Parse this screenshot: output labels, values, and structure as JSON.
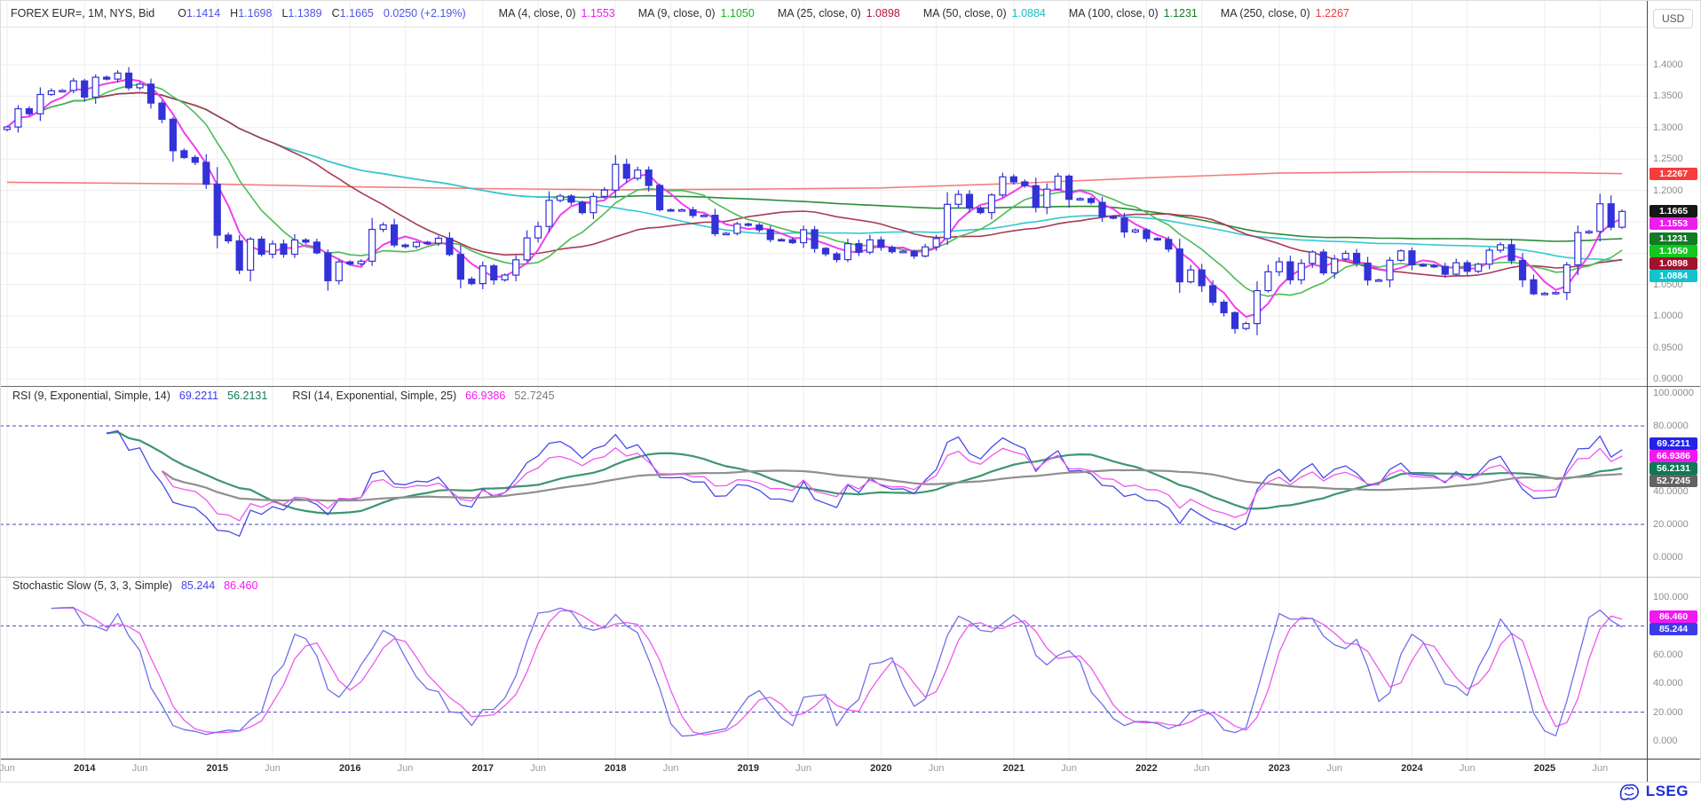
{
  "legend": {
    "instrument": "FOREX EUR=, 1M, NYS, Bid",
    "ohlc_tokens": [
      {
        "label": "O",
        "value": "1.1414"
      },
      {
        "label": "H",
        "value": "1.1698"
      },
      {
        "label": "L",
        "value": "1.1389"
      },
      {
        "label": "C",
        "value": "1.1665"
      }
    ],
    "change": "0.0250 (+2.19%)",
    "value_color": "#4e56e8",
    "ma_items": [
      {
        "label": "MA (4, close, 0)",
        "value": "1.1553",
        "color": "#ee1cee"
      },
      {
        "label": "MA (9, close, 0)",
        "value": "1.1050",
        "color": "#12b51f"
      },
      {
        "label": "MA (25, close, 0)",
        "value": "1.0898",
        "color": "#b5173a"
      },
      {
        "label": "MA (50, close, 0)",
        "value": "1.0884",
        "color": "#17c0ce"
      },
      {
        "label": "MA (100, close, 0)",
        "value": "1.1231",
        "color": "#157a26"
      },
      {
        "label": "MA (250, close, 0)",
        "value": "1.2267",
        "color": "#ee3b3b"
      }
    ]
  },
  "axis": {
    "currency": "USD"
  },
  "footer": {
    "brand": "LSEG"
  },
  "chart_data": {
    "type": "candlestick",
    "symbol": "FOREX EUR=",
    "interval": "1M",
    "start_month": "2013-06",
    "candle_color": "#3232d8",
    "closes": [
      1.301,
      1.33,
      1.322,
      1.3527,
      1.3585,
      1.3591,
      1.3743,
      1.3486,
      1.3802,
      1.3772,
      1.3867,
      1.3634,
      1.3692,
      1.339,
      1.3132,
      1.2632,
      1.2524,
      1.2447,
      1.2098,
      1.1288,
      1.1197,
      1.0731,
      1.1224,
      1.0985,
      1.1147,
      1.0984,
      1.1211,
      1.1177,
      1.1006,
      1.0563,
      1.0862,
      1.0831,
      1.0873,
      1.138,
      1.1451,
      1.1131,
      1.1106,
      1.1175,
      1.1159,
      1.1238,
      1.0981,
      1.0587,
      1.0517,
      1.0798,
      1.0576,
      1.0652,
      1.0895,
      1.1244,
      1.1426,
      1.1842,
      1.191,
      1.1814,
      1.1646,
      1.1904,
      1.2005,
      1.2415,
      1.2193,
      1.2324,
      1.2079,
      1.1693,
      1.1684,
      1.1691,
      1.1601,
      1.1604,
      1.1312,
      1.1317,
      1.1467,
      1.1448,
      1.1372,
      1.1218,
      1.1215,
      1.1168,
      1.1373,
      1.1077,
      1.0989,
      1.0899,
      1.1152,
      1.1017,
      1.1213,
      1.1093,
      1.1025,
      1.1031,
      1.0955,
      1.1101,
      1.1234,
      1.1778,
      1.1936,
      1.1721,
      1.1647,
      1.1927,
      1.2216,
      1.2136,
      1.2075,
      1.173,
      1.202,
      1.2227,
      1.1858,
      1.187,
      1.1809,
      1.158,
      1.156,
      1.1339,
      1.137,
      1.1235,
      1.1219,
      1.1067,
      1.0545,
      1.0734,
      1.0484,
      1.022,
      1.0054,
      0.9802,
      0.9881,
      1.0405,
      1.0705,
      1.0863,
      1.0577,
      1.0839,
      1.1019,
      1.0687,
      1.0909,
      1.0998,
      1.0843,
      1.0573,
      1.0575,
      1.0888,
      1.1038,
      1.0818,
      1.0805,
      1.079,
      1.0666,
      1.0848,
      1.0713,
      1.0826,
      1.1048,
      1.1135,
      1.0884,
      1.0577,
      1.0354,
      1.0362,
      1.0375,
      1.0815,
      1.1328,
      1.1347,
      1.1787,
      1.1415,
      1.1665
    ],
    "last_candle": {
      "open": 1.1414,
      "high": 1.1698,
      "low": 1.1389,
      "close": 1.1665
    },
    "price_axis": {
      "min": 0.9,
      "max": 1.4,
      "tick": 0.05,
      "labels": [
        "1.4000",
        "1.3500",
        "1.3000",
        "1.2500",
        "1.2000",
        "1.1500",
        "1.1000",
        "1.0500",
        "1.0000",
        "0.9500",
        "0.9000"
      ]
    },
    "price_badges": [
      {
        "text": "1.2267",
        "value": 1.2267,
        "bg": "#f83b3b"
      },
      {
        "text": "1.1665",
        "value": 1.1665,
        "bg": "#161616"
      },
      {
        "text": "1.1553",
        "value": 1.1553,
        "bg": "#ee1cee"
      },
      {
        "text": "1.1231",
        "value": 1.1231,
        "bg": "#157a26"
      },
      {
        "text": "1.1050",
        "value": 1.105,
        "bg": "#12c81f"
      },
      {
        "text": "1.0898",
        "value": 1.0898,
        "bg": "#a3122f"
      },
      {
        "text": "1.0884",
        "value": 1.0884,
        "bg": "#12c3ce"
      }
    ],
    "overlays": [
      {
        "name": "MA 250",
        "period": 250,
        "line_color": "#f47c7c",
        "path_points": [
          [
            0,
            1.213
          ],
          [
            19,
            1.21
          ],
          [
            31,
            1.206
          ],
          [
            43,
            1.203
          ],
          [
            55,
            1.201
          ],
          [
            67,
            1.202
          ],
          [
            79,
            1.204
          ],
          [
            91,
            1.211
          ],
          [
            103,
            1.22
          ],
          [
            115,
            1.2275
          ],
          [
            127,
            1.2295
          ],
          [
            139,
            1.2285
          ],
          [
            146,
            1.2267
          ]
        ],
        "last": "1.2267"
      },
      {
        "name": "MA 100",
        "period": 100,
        "line_color": "#2c8a3a",
        "last": "1.1231"
      },
      {
        "name": "MA 50",
        "period": 50,
        "line_color": "#35c8d6",
        "last": "1.0884"
      },
      {
        "name": "MA 25",
        "period": 25,
        "line_color": "#aa3a52",
        "last": "1.0898"
      },
      {
        "name": "MA 9",
        "period": 9,
        "line_color": "#4cbb58",
        "last": "1.1050"
      },
      {
        "name": "MA 4",
        "period": 4,
        "line_color": "#f03ef0",
        "last": "1.1553"
      }
    ],
    "rsi_panel": {
      "legend": [
        {
          "label": "RSI (9, Exponential, Simple, 14)",
          "values": [
            {
              "text": "69.2211",
              "color": "#3a3aee"
            },
            {
              "text": "56.2131",
              "color": "#117a52"
            }
          ]
        },
        {
          "label": "RSI (14, Exponential, Simple, 25)",
          "values": [
            {
              "text": "66.9386",
              "color": "#f218f2"
            },
            {
              "text": "52.7245",
              "color": "#7a7a7a"
            }
          ]
        }
      ],
      "lines": [
        {
          "period": 9,
          "signal": 14,
          "color": "#4949e8",
          "signal_color": "#3d9670"
        },
        {
          "period": 14,
          "signal": 25,
          "color": "#ee58ee",
          "signal_color": "#8f8f8f"
        }
      ],
      "bands": [
        80,
        20
      ],
      "axis_labels": [
        "100.0000",
        "80.0000",
        "60.0000",
        "40.0000",
        "20.0000",
        "0.0000"
      ],
      "badges": [
        {
          "text": "69.2211",
          "value": 69.2211,
          "bg": "#2323e8"
        },
        {
          "text": "66.9386",
          "value": 66.9386,
          "bg": "#f218f2"
        },
        {
          "text": "56.2131",
          "value": 56.2131,
          "bg": "#0c7a52"
        },
        {
          "text": "52.7245",
          "value": 52.7245,
          "bg": "#636363"
        }
      ]
    },
    "stoch_panel": {
      "label": "Stochastic Slow (5, 3, 3, Simple)",
      "values": [
        {
          "text": "85.244",
          "color": "#4343e8"
        },
        {
          "text": "86.460",
          "color": "#f218f2"
        }
      ],
      "k_color": "#7070e8",
      "d_color": "#ee58ee",
      "k_period": 5,
      "k_smooth": 3,
      "d_period": 3,
      "bands": [
        80,
        20
      ],
      "axis_labels": [
        "100.000",
        "80.000",
        "60.000",
        "40.000",
        "20.000",
        "0.000"
      ],
      "badges": [
        {
          "text": "86.460",
          "value": 86.46,
          "bg": "#f218f2"
        },
        {
          "text": "85.244",
          "value": 85.244,
          "bg": "#3b3bea"
        }
      ]
    },
    "time_axis": [
      [
        "Jun",
        0
      ],
      [
        "2014",
        7
      ],
      [
        "Jun",
        12
      ],
      [
        "2015",
        19
      ],
      [
        "Jun",
        24
      ],
      [
        "2016",
        31
      ],
      [
        "Jun",
        36
      ],
      [
        "2017",
        43
      ],
      [
        "Jun",
        48
      ],
      [
        "2018",
        55
      ],
      [
        "Jun",
        60
      ],
      [
        "2019",
        67
      ],
      [
        "Jun",
        72
      ],
      [
        "2020",
        79
      ],
      [
        "Jun",
        84
      ],
      [
        "2021",
        91
      ],
      [
        "Jun",
        96
      ],
      [
        "2022",
        103
      ],
      [
        "Jun",
        108
      ],
      [
        "2023",
        115
      ],
      [
        "Jun",
        120
      ],
      [
        "2024",
        127
      ],
      [
        "Jun",
        132
      ],
      [
        "2025",
        139
      ],
      [
        "Jun",
        144
      ]
    ]
  }
}
